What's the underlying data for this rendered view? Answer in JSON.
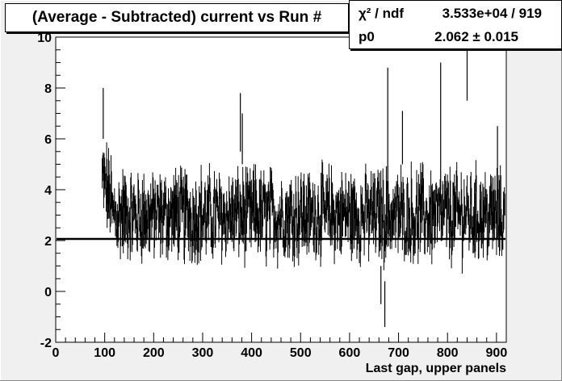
{
  "chart_data": {
    "type": "line",
    "title": "(Average - Subtracted) current vs Run #",
    "xlabel": "Last gap, upper panels",
    "ylabel": "",
    "xlim": [
      0,
      920
    ],
    "ylim": [
      -2,
      10
    ],
    "x_ticks": [
      "0",
      "100",
      "200",
      "300",
      "400",
      "500",
      "600",
      "700",
      "800",
      "900"
    ],
    "y_ticks": [
      "-2",
      "0",
      "2",
      "4",
      "6",
      "8",
      "10"
    ],
    "grid": false,
    "data_start_x": 95,
    "data_end_x": 917,
    "fit_value": 2.062,
    "spikes": [
      {
        "x": 97,
        "low": 6.0,
        "high": 8.0
      },
      {
        "x": 377,
        "low": 5.5,
        "high": 7.8
      },
      {
        "x": 381,
        "low": 5.0,
        "high": 7.0
      },
      {
        "x": 664,
        "low": -0.5,
        "high": 1.0
      },
      {
        "x": 672,
        "low": -1.4,
        "high": 0.4
      },
      {
        "x": 678,
        "low": 4.0,
        "high": 8.8
      },
      {
        "x": 708,
        "low": 5.0,
        "high": 7.1
      },
      {
        "x": 786,
        "low": 4.0,
        "high": 9.0
      },
      {
        "x": 840,
        "low": 7.5,
        "high": 9.5
      },
      {
        "x": 902,
        "low": 4.0,
        "high": 6.5
      }
    ],
    "colors": {
      "frame_bg": "#f0f0f0",
      "plot_bg": "#ffffff",
      "data": "#000000",
      "fit": "#000000"
    }
  },
  "stats": {
    "row1_label": "χ² / ndf",
    "row1_value": "3.533e+04 / 919",
    "row2_label": "p0",
    "row2_value": "2.062 ± 0.015"
  }
}
